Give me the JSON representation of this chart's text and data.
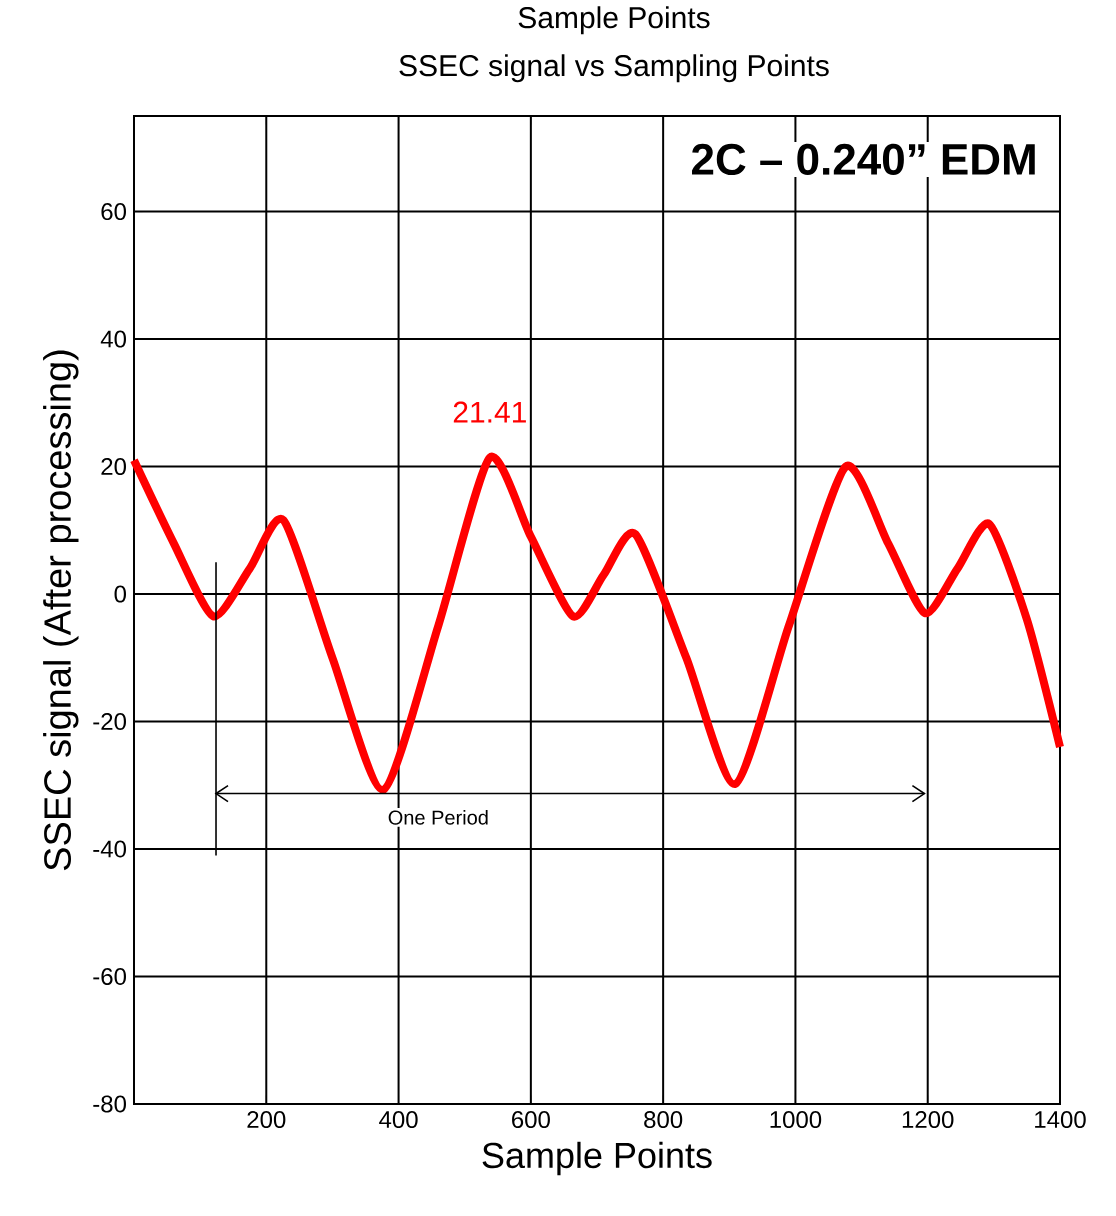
{
  "chart_data": {
    "type": "line",
    "title": "Sample Points",
    "subtitle": "SSEC signal vs Sampling Points",
    "xlabel": "Sample Points",
    "ylabel": "SSEC signal (After processing)",
    "x": [
      0,
      60,
      120,
      175,
      226,
      300,
      377,
      460,
      538,
      600,
      664,
      710,
      758,
      835,
      909,
      990,
      1076,
      1140,
      1196,
      1245,
      1293,
      1350,
      1400
    ],
    "series": [
      {
        "color": "#ff0000",
        "values": [
          21,
          8,
          -3.5,
          4,
          11.6,
          -10,
          -30.7,
          -5,
          21.41,
          9,
          -3.5,
          3,
          9.4,
          -10,
          -29.8,
          -5,
          20,
          8,
          -3,
          4,
          11,
          -4,
          -24
        ]
      }
    ],
    "xlim": [
      0,
      1400
    ],
    "ylim": [
      -80,
      75
    ],
    "xticks": [
      200,
      400,
      600,
      800,
      1000,
      1200,
      1400
    ],
    "yticks": [
      -80,
      -60,
      -40,
      -20,
      0,
      20,
      40,
      60
    ],
    "grid": true,
    "marker": "none",
    "line_style": "solid",
    "annotations": [
      "2C – 0.240” EDM",
      {
        "text": "21.41",
        "x": 538,
        "y": 21.41
      },
      "One Period"
    ]
  }
}
